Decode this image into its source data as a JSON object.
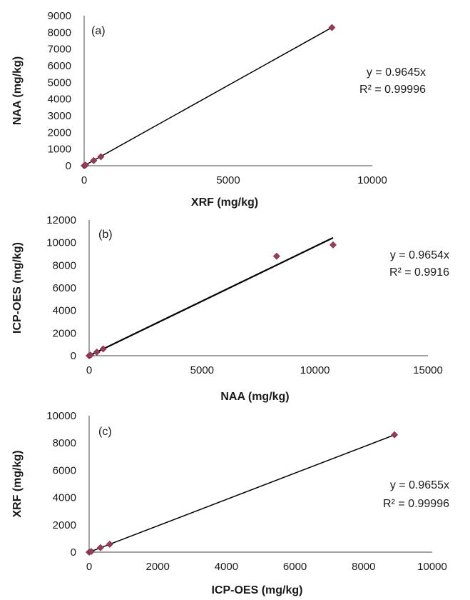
{
  "chart_data": [
    {
      "type": "scatter",
      "panel_label": "(a)",
      "xlabel": "XRF (mg/kg)",
      "ylabel": "NAA (mg/kg)",
      "xlim": [
        0,
        10000
      ],
      "ylim": [
        0,
        9000
      ],
      "xticks": [
        0,
        5000,
        10000
      ],
      "yticks": [
        0,
        1000,
        2000,
        3000,
        4000,
        5000,
        6000,
        7000,
        8000,
        9000
      ],
      "points": [
        {
          "x": 0,
          "y": 0
        },
        {
          "x": 50,
          "y": 40
        },
        {
          "x": 330,
          "y": 310
        },
        {
          "x": 580,
          "y": 540
        },
        {
          "x": 8600,
          "y": 8290
        }
      ],
      "trendline": {
        "slope": 0.9645,
        "x_range": [
          0,
          8600
        ]
      },
      "equation": "y = 0.9645x",
      "r_squared": "R² = 0.99996",
      "grid": false,
      "marker_color": "#9b3a5a",
      "line_color": "#000000"
    },
    {
      "type": "scatter",
      "panel_label": "(b)",
      "xlabel": "NAA (mg/kg)",
      "ylabel": "ICP-OES (mg/kg)",
      "xlim": [
        0,
        15000
      ],
      "ylim": [
        0,
        12000
      ],
      "xticks": [
        0,
        5000,
        10000,
        15000
      ],
      "yticks": [
        0,
        2000,
        4000,
        6000,
        8000,
        10000,
        12000
      ],
      "points": [
        {
          "x": 0,
          "y": 0
        },
        {
          "x": 60,
          "y": 50
        },
        {
          "x": 340,
          "y": 320
        },
        {
          "x": 620,
          "y": 600
        },
        {
          "x": 8300,
          "y": 8800
        },
        {
          "x": 10800,
          "y": 9800
        }
      ],
      "trendline": {
        "slope": 0.9654,
        "x_range": [
          0,
          10800
        ]
      },
      "equation": "y = 0.9654x",
      "r_squared": "R² = 0.9916",
      "grid": false,
      "marker_color": "#9b3a5a",
      "line_color": "#000000"
    },
    {
      "type": "scatter",
      "panel_label": "(c)",
      "xlabel": "ICP-OES (mg/kg)",
      "ylabel": "XRF (mg/kg)",
      "xlim": [
        0,
        10000
      ],
      "ylim": [
        0,
        10000
      ],
      "xticks": [
        0,
        2000,
        4000,
        6000,
        8000,
        10000
      ],
      "yticks": [
        0,
        2000,
        4000,
        6000,
        8000,
        10000
      ],
      "points": [
        {
          "x": 0,
          "y": 0
        },
        {
          "x": 60,
          "y": 50
        },
        {
          "x": 330,
          "y": 330
        },
        {
          "x": 600,
          "y": 580
        },
        {
          "x": 8900,
          "y": 8600
        }
      ],
      "trendline": {
        "slope": 0.9655,
        "x_range": [
          0,
          8900
        ]
      },
      "equation": "y = 0.9655x",
      "r_squared": "R² = 0.99996",
      "grid": false,
      "marker_color": "#9b3a5a",
      "line_color": "#000000"
    }
  ]
}
